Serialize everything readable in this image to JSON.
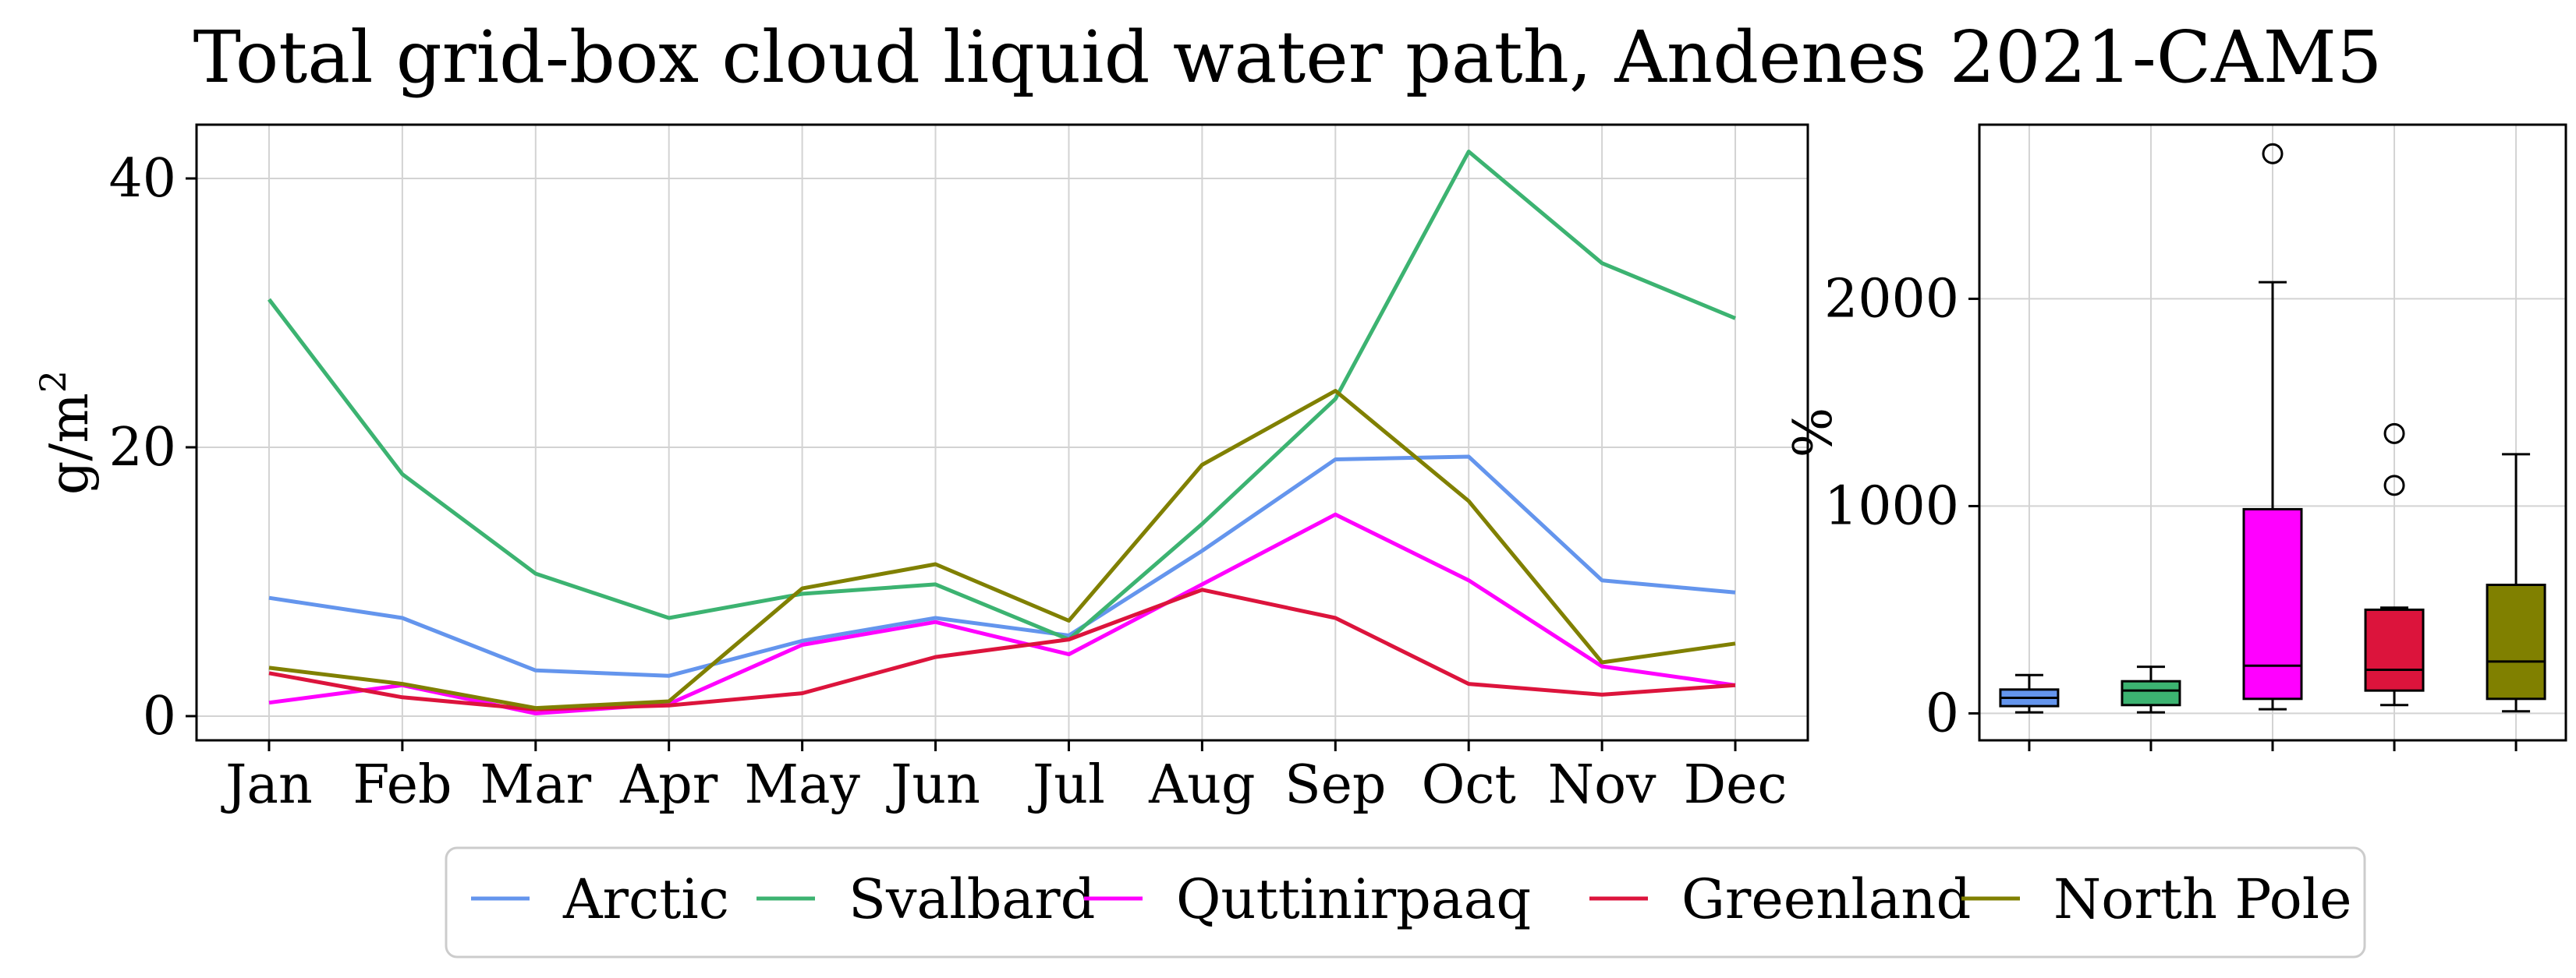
{
  "title": "Total grid-box cloud liquid water path, Andenes 2021-CAM5",
  "chart_data": [
    {
      "type": "line",
      "xlabel": "",
      "ylabel": "g/m",
      "ylabel_superscript": "2",
      "categories": [
        "Jan",
        "Feb",
        "Mar",
        "Apr",
        "May",
        "Jun",
        "Jul",
        "Aug",
        "Sep",
        "Oct",
        "Nov",
        "Dec"
      ],
      "yticks": [
        0,
        20,
        40
      ],
      "ylim": [
        -1.8,
        44
      ],
      "grid": true,
      "series": [
        {
          "name": "Arctic",
          "color": "#6495ED",
          "values": [
            8.8,
            7.3,
            3.4,
            3.0,
            5.6,
            7.3,
            6.0,
            12.3,
            19.1,
            19.3,
            10.1,
            9.2
          ]
        },
        {
          "name": "Svalbard",
          "color": "#3CB371",
          "values": [
            31.0,
            18.0,
            10.6,
            7.3,
            9.1,
            9.8,
            5.7,
            14.3,
            23.6,
            42.0,
            33.7,
            29.6
          ]
        },
        {
          "name": "Quttinirpaaq",
          "color": "#FF00FF",
          "values": [
            1.0,
            2.3,
            0.2,
            0.9,
            5.3,
            7.0,
            4.6,
            9.8,
            15.0,
            10.1,
            3.7,
            2.3
          ]
        },
        {
          "name": "Greenland",
          "color": "#DC143C",
          "values": [
            3.2,
            1.4,
            0.5,
            0.8,
            1.7,
            4.4,
            5.7,
            9.4,
            7.3,
            2.4,
            1.6,
            2.3
          ]
        },
        {
          "name": "North Pole",
          "color": "#808000",
          "values": [
            3.6,
            2.4,
            0.6,
            1.1,
            9.5,
            11.3,
            7.1,
            18.7,
            24.2,
            16.0,
            4.0,
            5.4
          ]
        }
      ]
    },
    {
      "type": "box",
      "xlabel": "",
      "ylabel": "%",
      "yticks": [
        0,
        1000,
        2000
      ],
      "ylim": [
        -130,
        2840
      ],
      "grid": true,
      "boxes": [
        {
          "name": "Arctic",
          "color": "#6495ED",
          "whisker_low": 5,
          "q1": 35,
          "median": 75,
          "q3": 115,
          "whisker_high": 185,
          "outliers": []
        },
        {
          "name": "Svalbard",
          "color": "#3CB371",
          "whisker_low": 5,
          "q1": 40,
          "median": 110,
          "q3": 155,
          "whisker_high": 225,
          "outliers": []
        },
        {
          "name": "Quttinirpaaq",
          "color": "#FF00FF",
          "whisker_low": 20,
          "q1": 70,
          "median": 230,
          "q3": 985,
          "whisker_high": 2080,
          "outliers": [
            2700
          ]
        },
        {
          "name": "Greenland",
          "color": "#DC143C",
          "whisker_low": 40,
          "q1": 110,
          "median": 210,
          "q3": 500,
          "whisker_high": 510,
          "outliers": [
            1100,
            1350
          ]
        },
        {
          "name": "North Pole",
          "color": "#808000",
          "whisker_low": 10,
          "q1": 70,
          "median": 250,
          "q3": 620,
          "whisker_high": 1250,
          "outliers": []
        }
      ]
    }
  ],
  "legend": {
    "placement": "bottom-center",
    "entries": [
      "Arctic",
      "Svalbard",
      "Quttinirpaaq",
      "Greenland",
      "North Pole"
    ]
  }
}
